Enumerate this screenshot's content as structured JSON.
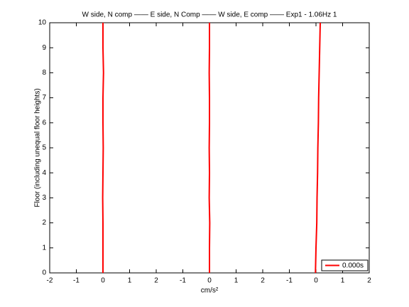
{
  "chart_data": {
    "type": "line",
    "title": "W side, N comp —— E side, N Comp —— W side, E comp —— Exp1 - 1.06Hz 1",
    "xlabel": "cm/s²",
    "ylabel": "Floor (including unequal floor heights)",
    "xlim": [
      0,
      12
    ],
    "xticks": [
      {
        "value": 0,
        "label": "-2"
      },
      {
        "value": 1,
        "label": "-1"
      },
      {
        "value": 2,
        "label": "0"
      },
      {
        "value": 3,
        "label": "1"
      },
      {
        "value": 4,
        "label": "2"
      },
      {
        "value": 5,
        "label": "-1"
      },
      {
        "value": 6,
        "label": "0"
      },
      {
        "value": 7,
        "label": "1"
      },
      {
        "value": 8,
        "label": "2"
      },
      {
        "value": 9,
        "label": "-1"
      },
      {
        "value": 10,
        "label": "0"
      },
      {
        "value": 11,
        "label": "1"
      },
      {
        "value": 12,
        "label": "2"
      }
    ],
    "ylim": [
      0,
      10
    ],
    "yticks": [
      0,
      1,
      2,
      3,
      4,
      5,
      6,
      7,
      8,
      9,
      10
    ],
    "legend": "bottom-right",
    "series": [
      {
        "name": "0.000s",
        "color": "#ff0000",
        "x": [
          2.0,
          2.0,
          2.0,
          1.99,
          2.0,
          2.01,
          2.0,
          2.0,
          2.02,
          2.0,
          2.0,
          null,
          6.0,
          6.0,
          6.01,
          5.99,
          6.0,
          5.99,
          6.0,
          6.0,
          5.99,
          6.0,
          6.0,
          null,
          9.98,
          10.0,
          10.03,
          10.04,
          10.06,
          10.07,
          10.09,
          10.1,
          10.12,
          10.14,
          10.16
        ],
        "values": [
          0,
          1,
          2,
          3,
          4,
          5,
          6,
          7,
          8,
          9,
          10,
          null,
          0,
          1,
          2,
          3,
          4,
          5,
          6,
          7,
          8,
          9,
          10,
          null,
          0,
          1,
          2,
          3,
          4,
          5,
          6,
          7,
          8,
          9,
          10
        ]
      }
    ]
  }
}
